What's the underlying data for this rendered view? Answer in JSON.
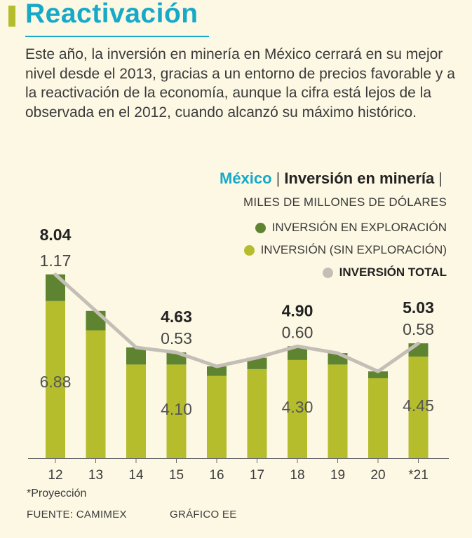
{
  "header": {
    "title": "Reactivación",
    "intro": "Este año, la inversión en minería en México cerrará en su mejor nivel desde el 2013, gracias a un entorno de precios favorable y a la reactivación de la economía, aunque la cifra está lejos de la observada en el 2012, cuando alcanzó su máximo histórico."
  },
  "chart_heading": {
    "country": "México",
    "separator": "|",
    "subject": "Inversión en minería",
    "units": "MILES DE MILLONES DE DÓLARES"
  },
  "legend": {
    "exploration": "INVERSIÓN EN EXPLORACIÓN",
    "non_exploration": "INVERSIÓN (SIN EXPLORACIÓN)",
    "total": "INVERSIÓN TOTAL"
  },
  "colors": {
    "exploration": "#5f8431",
    "non_exploration": "#b5bd2c",
    "total_line": "#c4bfb6",
    "accent": "#16a9c8",
    "background": "#fdf8e4"
  },
  "chart_data": {
    "type": "bar",
    "stacked": true,
    "categories": [
      "12",
      "13",
      "14",
      "15",
      "16",
      "17",
      "18",
      "19",
      "20",
      "*21"
    ],
    "series": [
      {
        "name": "INVERSIÓN (SIN EXPLORACIÓN)",
        "values": [
          6.88,
          5.6,
          4.1,
          4.1,
          3.6,
          3.9,
          4.3,
          4.1,
          3.5,
          4.45
        ]
      },
      {
        "name": "INVERSIÓN EN EXPLORACIÓN",
        "values": [
          1.17,
          0.85,
          0.75,
          0.53,
          0.42,
          0.5,
          0.6,
          0.5,
          0.3,
          0.58
        ]
      },
      {
        "name": "INVERSIÓN TOTAL",
        "type": "line",
        "values": [
          8.04,
          6.45,
          4.85,
          4.63,
          4.02,
          4.4,
          4.9,
          4.6,
          3.8,
          5.03
        ]
      }
    ],
    "annotations": [
      {
        "category": "12",
        "total": "8.04",
        "exploration": "1.17",
        "non_exploration": "6.88"
      },
      {
        "category": "15",
        "total": "4.63",
        "exploration": "0.53",
        "non_exploration": "4.10"
      },
      {
        "category": "18",
        "total": "4.90",
        "exploration": "0.60",
        "non_exploration": "4.30"
      },
      {
        "category": "*21",
        "total": "5.03",
        "exploration": "0.58",
        "non_exploration": "4.45"
      }
    ],
    "ylim": [
      0,
      8.04
    ],
    "grid": false,
    "legend_position": "top-right"
  },
  "footer": {
    "footnote": "*Proyección",
    "source": "FUENTE: CAMIMEX",
    "credit": "GRÁFICO EE"
  }
}
